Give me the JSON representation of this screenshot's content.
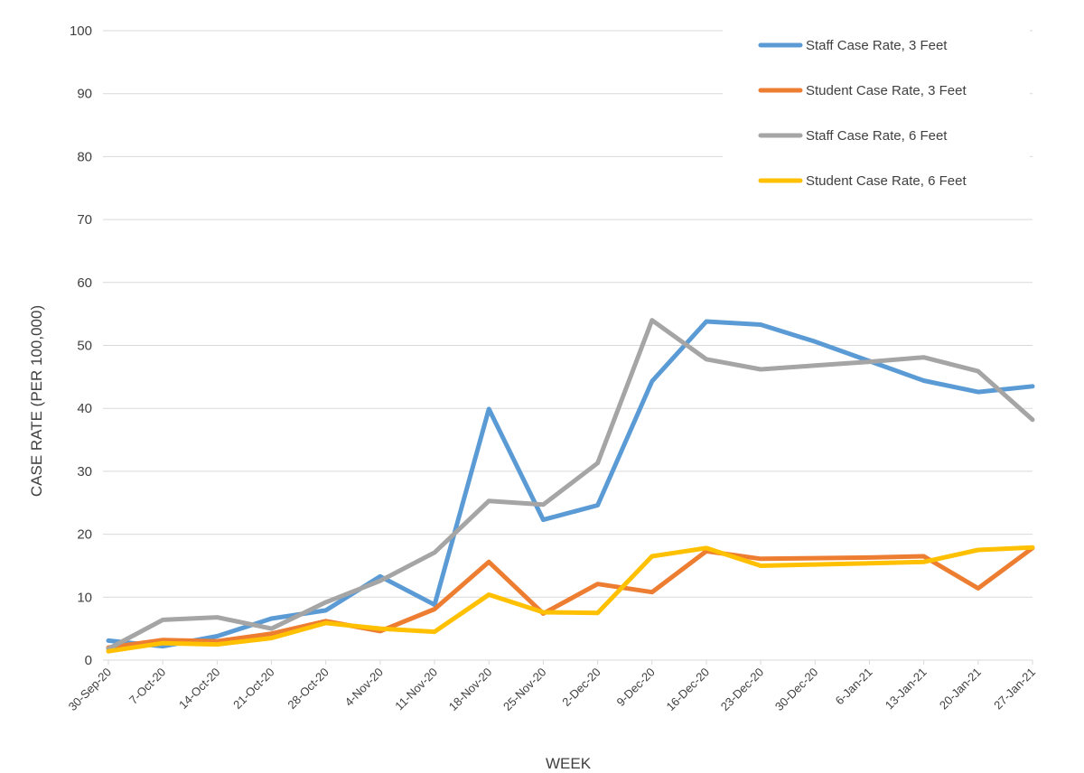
{
  "chart_data": {
    "type": "line",
    "title": "",
    "xlabel": "WEEK",
    "ylabel": "CASE RATE (PER 100,000)",
    "ylim": [
      0,
      100
    ],
    "yticks": [
      0,
      10,
      20,
      30,
      40,
      50,
      60,
      70,
      80,
      90,
      100
    ],
    "grid": true,
    "legend_position": "top-right",
    "categories": [
      "30-Sep-20",
      "7-Oct-20",
      "14-Oct-20",
      "21-Oct-20",
      "28-Oct-20",
      "4-Nov-20",
      "11-Nov-20",
      "18-Nov-20",
      "25-Nov-20",
      "2-Dec-20",
      "9-Dec-20",
      "16-Dec-20",
      "23-Dec-20",
      "30-Dec-20",
      "6-Jan-21",
      "13-Jan-21",
      "20-Jan-21",
      "27-Jan-21"
    ],
    "series": [
      {
        "name": "Staff Case Rate, 3 Feet",
        "color": "#5b9bd5",
        "values": [
          3.1,
          2.2,
          3.8,
          6.6,
          7.9,
          13.3,
          8.8,
          39.9,
          22.3,
          24.6,
          44.3,
          53.8,
          53.3,
          50.6,
          47.5,
          44.4,
          42.6,
          43.5
        ]
      },
      {
        "name": "Student Case Rate, 3 Feet",
        "color": "#ed7d31",
        "values": [
          2.0,
          3.2,
          3.0,
          4.2,
          6.2,
          4.6,
          8.1,
          15.6,
          7.4,
          12.1,
          10.8,
          17.3,
          16.1,
          16.2,
          16.3,
          16.5,
          11.4,
          17.8
        ]
      },
      {
        "name": "Staff Case Rate, 6 Feet",
        "color": "#a5a5a5",
        "values": [
          1.8,
          6.4,
          6.8,
          5.0,
          9.2,
          12.6,
          17.1,
          25.3,
          24.7,
          31.3,
          54.0,
          47.8,
          46.2,
          46.8,
          47.4,
          48.1,
          45.9,
          38.2
        ]
      },
      {
        "name": "Student Case Rate, 6 Feet",
        "color": "#ffc000",
        "values": [
          1.4,
          2.7,
          2.5,
          3.5,
          5.9,
          5.0,
          4.5,
          10.4,
          7.6,
          7.5,
          16.5,
          17.8,
          15.0,
          15.2,
          15.4,
          15.6,
          17.5,
          17.9
        ]
      }
    ]
  }
}
